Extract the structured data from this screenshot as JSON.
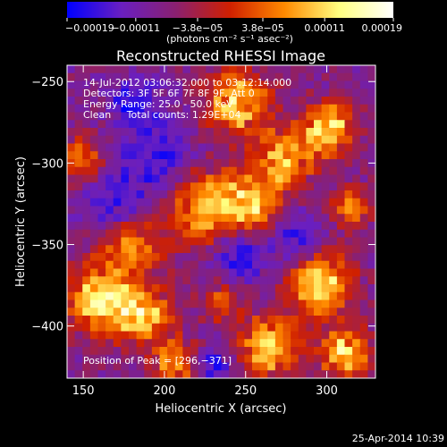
{
  "chart_data": {
    "type": "heatmap",
    "title": "Reconstructed RHESSI Image",
    "xlabel": "Heliocentric X (arcsec)",
    "ylabel": "Heliocentric Y (arcsec)",
    "xlim": [
      140,
      330
    ],
    "ylim": [
      -432,
      -240
    ],
    "x_ticks": [
      150,
      200,
      250,
      300
    ],
    "y_ticks": [
      -250,
      -300,
      -350,
      -400
    ],
    "x_tick_labels": [
      "150",
      "200",
      "250",
      "300"
    ],
    "y_tick_labels": [
      "−250",
      "−300",
      "−350",
      "−400"
    ],
    "colorbar": {
      "range": [
        -0.00019,
        0.00019
      ],
      "ticks": [
        -0.00019,
        -0.00011,
        -3.8e-05,
        3.8e-05,
        0.00011,
        0.00019
      ],
      "tick_labels": [
        "−0.00019",
        "−0.00011",
        "−3.8e−05",
        "3.8e−05",
        "0.00011",
        "0.00019"
      ],
      "colors": [
        "#0000ff",
        "#6a1fc0",
        "#8a2070",
        "#d02000",
        "#ff8a00",
        "#ffff80",
        "#ffffff"
      ],
      "units_label": "(photons cm⁻² s⁻¹ asec⁻²)"
    },
    "annotations": [
      "14-Jul-2012 03:06:32.000 to 03:12:14.000",
      "Detectors: 3F 5F 6F 7F 8F 9F, Att 0",
      "Energy Range: 25.0 - 50.0 keV",
      "Clean     Total counts: 1.29E+04"
    ],
    "peak_label": "Position of Peak = [296,−371]",
    "peak": [
      296,
      -371
    ]
  },
  "footer": {
    "timestamp": "25-Apr-2014 10:39"
  }
}
